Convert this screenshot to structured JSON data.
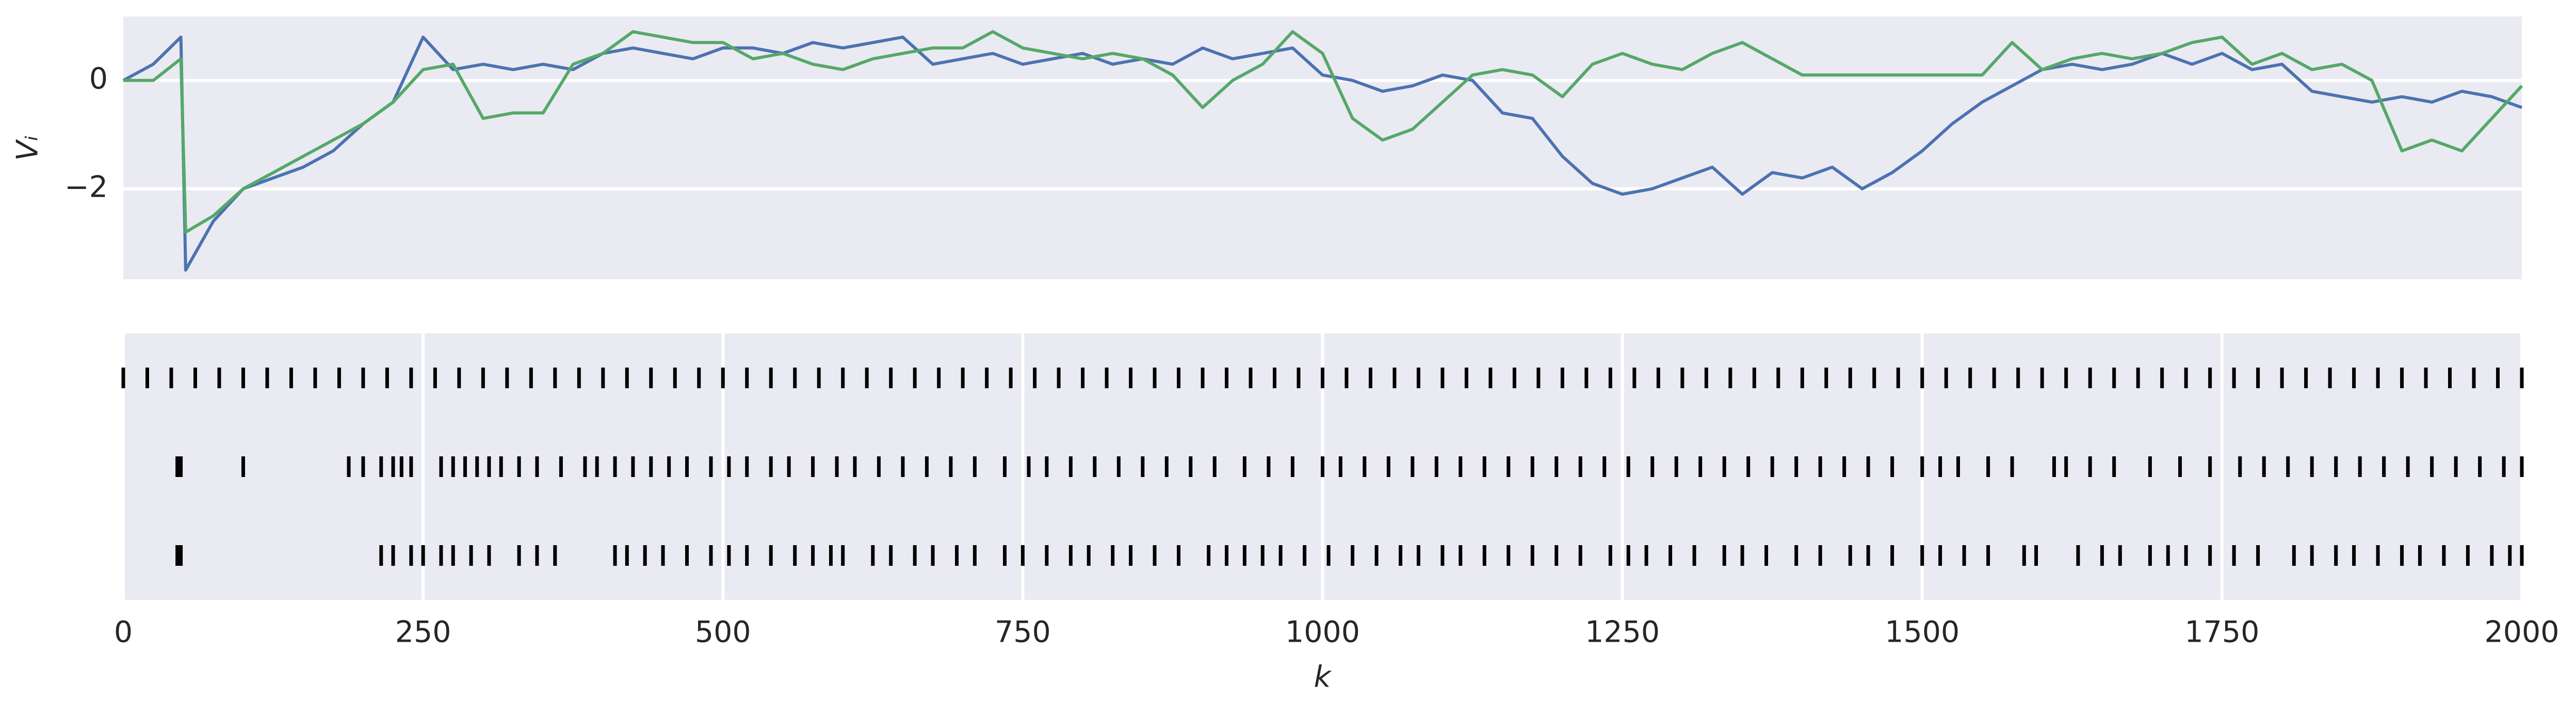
{
  "chart_data": [
    {
      "type": "line",
      "ylabel": "Vᵢ",
      "x": [
        0,
        25,
        48,
        52,
        75,
        100,
        125,
        150,
        175,
        200,
        225,
        250,
        275,
        300,
        325,
        350,
        375,
        400,
        425,
        450,
        475,
        500,
        525,
        550,
        575,
        600,
        625,
        650,
        675,
        700,
        725,
        750,
        775,
        800,
        825,
        850,
        875,
        900,
        925,
        950,
        975,
        1000,
        1025,
        1050,
        1075,
        1100,
        1125,
        1150,
        1175,
        1200,
        1225,
        1250,
        1275,
        1300,
        1325,
        1350,
        1375,
        1400,
        1425,
        1450,
        1475,
        1500,
        1525,
        1550,
        1575,
        1600,
        1625,
        1650,
        1675,
        1700,
        1725,
        1750,
        1775,
        1800,
        1825,
        1850,
        1875,
        1900,
        1925,
        1950,
        1975,
        2000
      ],
      "series": [
        {
          "color": "#4c72b0",
          "values": [
            0,
            0.3,
            0.8,
            -3.5,
            -2.6,
            -2.0,
            -1.8,
            -1.6,
            -1.3,
            -0.8,
            -0.4,
            0.8,
            0.2,
            0.3,
            0.2,
            0.3,
            0.2,
            0.5,
            0.6,
            0.5,
            0.4,
            0.6,
            0.6,
            0.5,
            0.7,
            0.6,
            0.7,
            0.8,
            0.3,
            0.4,
            0.5,
            0.3,
            0.4,
            0.5,
            0.3,
            0.4,
            0.3,
            0.6,
            0.4,
            0.5,
            0.6,
            0.1,
            0,
            -0.2,
            -0.1,
            0.1,
            0,
            -0.6,
            -0.7,
            -1.4,
            -1.9,
            -2.1,
            -2.0,
            -1.8,
            -1.6,
            -2.1,
            -1.7,
            -1.8,
            -1.6,
            -2.0,
            -1.7,
            -1.3,
            -0.8,
            -0.4,
            -0.1,
            0.2,
            0.3,
            0.2,
            0.3,
            0.5,
            0.3,
            0.5,
            0.2,
            0.3,
            -0.2,
            -0.3,
            -0.4,
            -0.3,
            -0.4,
            -0.2,
            -0.3,
            -0.5
          ]
        },
        {
          "color": "#55a868",
          "values": [
            0,
            0,
            0.4,
            -2.8,
            -2.5,
            -2.0,
            -1.7,
            -1.4,
            -1.1,
            -0.8,
            -0.4,
            0.2,
            0.3,
            -0.7,
            -0.6,
            -0.6,
            0.3,
            0.5,
            0.9,
            0.8,
            0.7,
            0.7,
            0.4,
            0.5,
            0.3,
            0.2,
            0.4,
            0.5,
            0.6,
            0.6,
            0.9,
            0.6,
            0.5,
            0.4,
            0.5,
            0.4,
            0.1,
            -0.5,
            0.0,
            0.3,
            0.9,
            0.5,
            -0.7,
            -1.1,
            -0.9,
            -0.4,
            0.1,
            0.2,
            0.1,
            -0.3,
            0.3,
            0.5,
            0.3,
            0.2,
            0.5,
            0.7,
            0.4,
            0.1,
            0.1,
            0.1,
            0.1,
            0.1,
            0.1,
            0.1,
            0.7,
            0.2,
            0.4,
            0.5,
            0.4,
            0.5,
            0.7,
            0.8,
            0.3,
            0.5,
            0.2,
            0.3,
            0.0,
            -1.3,
            -1.1,
            -1.3,
            -0.7,
            -0.1
          ]
        }
      ],
      "xlim": [
        0,
        2000
      ],
      "ylim": [
        -3.67,
        1.18
      ],
      "yticks": [
        {
          "value": -2,
          "label": "−2"
        },
        0
      ],
      "grid": true
    },
    {
      "type": "eventplot",
      "xlabel": "k",
      "color": "#000000",
      "xlim": [
        0,
        2000
      ],
      "xticks": [
        0,
        250,
        500,
        750,
        1000,
        1250,
        1500,
        1750,
        2000
      ],
      "grid": true,
      "series": [
        {
          "x": [
            0,
            20,
            40,
            60,
            80,
            100,
            120,
            140,
            160,
            180,
            200,
            220,
            240,
            260,
            280,
            300,
            320,
            340,
            360,
            380,
            400,
            420,
            440,
            460,
            480,
            500,
            520,
            540,
            560,
            580,
            600,
            620,
            640,
            660,
            680,
            700,
            720,
            740,
            760,
            780,
            800,
            820,
            840,
            860,
            880,
            900,
            920,
            940,
            960,
            980,
            1000,
            1020,
            1040,
            1060,
            1080,
            1100,
            1120,
            1140,
            1160,
            1180,
            1200,
            1220,
            1240,
            1260,
            1280,
            1300,
            1320,
            1340,
            1360,
            1380,
            1400,
            1420,
            1440,
            1460,
            1480,
            1500,
            1520,
            1540,
            1560,
            1580,
            1600,
            1620,
            1640,
            1660,
            1680,
            1700,
            1720,
            1740,
            1760,
            1780,
            1800,
            1820,
            1840,
            1860,
            1880,
            1900,
            1920,
            1940,
            1960,
            1980,
            2000
          ]
        },
        {
          "x": [
            45,
            48,
            100,
            188,
            200,
            215,
            225,
            232,
            240,
            265,
            275,
            285,
            295,
            305,
            315,
            330,
            345,
            365,
            385,
            395,
            410,
            425,
            440,
            455,
            470,
            490,
            505,
            520,
            540,
            555,
            575,
            595,
            610,
            630,
            650,
            670,
            690,
            710,
            735,
            755,
            770,
            790,
            810,
            830,
            850,
            870,
            890,
            910,
            935,
            955,
            975,
            1000,
            1015,
            1035,
            1055,
            1075,
            1095,
            1115,
            1135,
            1155,
            1175,
            1195,
            1215,
            1235,
            1255,
            1275,
            1295,
            1315,
            1335,
            1355,
            1375,
            1395,
            1415,
            1435,
            1455,
            1475,
            1500,
            1515,
            1530,
            1555,
            1575,
            1610,
            1620,
            1640,
            1660,
            1690,
            1715,
            1740,
            1765,
            1785,
            1805,
            1825,
            1845,
            1865,
            1885,
            1905,
            1925,
            1945,
            1965,
            1985,
            2000
          ]
        },
        {
          "x": [
            45,
            48,
            215,
            225,
            240,
            250,
            265,
            275,
            290,
            305,
            330,
            345,
            360,
            410,
            420,
            435,
            450,
            470,
            490,
            505,
            520,
            540,
            560,
            575,
            590,
            600,
            625,
            640,
            660,
            675,
            695,
            710,
            735,
            750,
            770,
            790,
            805,
            825,
            840,
            860,
            880,
            905,
            920,
            935,
            950,
            965,
            985,
            1005,
            1025,
            1045,
            1065,
            1080,
            1100,
            1115,
            1135,
            1155,
            1175,
            1195,
            1215,
            1240,
            1255,
            1270,
            1290,
            1310,
            1335,
            1350,
            1370,
            1395,
            1415,
            1440,
            1455,
            1475,
            1500,
            1515,
            1535,
            1555,
            1585,
            1595,
            1630,
            1650,
            1665,
            1690,
            1705,
            1720,
            1740,
            1760,
            1780,
            1810,
            1825,
            1845,
            1860,
            1880,
            1900,
            1915,
            1935,
            1955,
            1975,
            1990,
            2000
          ]
        }
      ]
    }
  ]
}
